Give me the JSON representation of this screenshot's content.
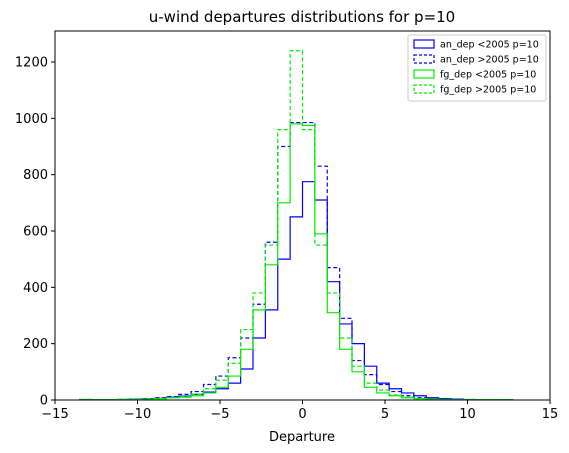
{
  "chart_data": {
    "type": "step",
    "title": "u-wind departures distributions for p=10",
    "xlabel": "Departure",
    "ylabel": "",
    "xlim": [
      -15,
      15
    ],
    "ylim": [
      0,
      1310
    ],
    "xticks": [
      -15,
      -10,
      -5,
      0,
      5,
      10,
      15
    ],
    "xtick_labels": [
      "−15",
      "−10",
      "−5",
      "0",
      "5",
      "10",
      "15"
    ],
    "yticks": [
      0,
      200,
      400,
      600,
      800,
      1000,
      1200
    ],
    "ytick_labels": [
      "0",
      "200",
      "400",
      "600",
      "800",
      "1000",
      "1200"
    ],
    "grid": false,
    "legend_position": "top-right",
    "bin_edges": [
      -13.5,
      -12.75,
      -12.0,
      -11.25,
      -10.5,
      -9.75,
      -9.0,
      -8.25,
      -7.5,
      -6.75,
      -6.0,
      -5.25,
      -4.5,
      -3.75,
      -3.0,
      -2.25,
      -1.5,
      -0.75,
      0.0,
      0.75,
      1.5,
      2.25,
      3.0,
      3.75,
      4.5,
      5.25,
      6.0,
      6.75,
      7.5,
      8.25,
      9.0,
      9.75,
      10.5,
      11.25,
      12.0,
      12.75
    ],
    "series": [
      {
        "name": "an_dep <2005 p=10",
        "color": "#0000ff",
        "dashed": false,
        "values": [
          2,
          1,
          1,
          2,
          3,
          4,
          6,
          10,
          14,
          20,
          28,
          40,
          60,
          110,
          220,
          320,
          500,
          650,
          775,
          710,
          420,
          270,
          200,
          120,
          60,
          40,
          25,
          15,
          8,
          5,
          3,
          2,
          1,
          1,
          1
        ]
      },
      {
        "name": "an_dep >2005 p=10",
        "color": "#0000ff",
        "dashed": true,
        "values": [
          1,
          1,
          1,
          2,
          3,
          5,
          8,
          12,
          20,
          30,
          55,
          85,
          150,
          220,
          340,
          560,
          900,
          985,
          985,
          830,
          470,
          290,
          140,
          90,
          55,
          30,
          15,
          8,
          4,
          2,
          1,
          1,
          1,
          1,
          1
        ]
      },
      {
        "name": "fg_dep <2005 p=10",
        "color": "#00ee00",
        "dashed": false,
        "values": [
          1,
          1,
          1,
          2,
          2,
          3,
          5,
          8,
          10,
          15,
          25,
          45,
          85,
          180,
          320,
          480,
          700,
          980,
          975,
          590,
          310,
          180,
          100,
          45,
          25,
          15,
          8,
          5,
          3,
          2,
          1,
          1,
          1,
          1,
          1
        ]
      },
      {
        "name": "fg_dep >2005 p=10",
        "color": "#00ee00",
        "dashed": true,
        "values": [
          1,
          1,
          1,
          2,
          2,
          3,
          5,
          8,
          12,
          20,
          40,
          70,
          130,
          250,
          380,
          550,
          960,
          1240,
          960,
          550,
          380,
          220,
          120,
          60,
          35,
          18,
          10,
          5,
          3,
          2,
          1,
          1,
          1,
          1,
          1
        ]
      }
    ]
  }
}
